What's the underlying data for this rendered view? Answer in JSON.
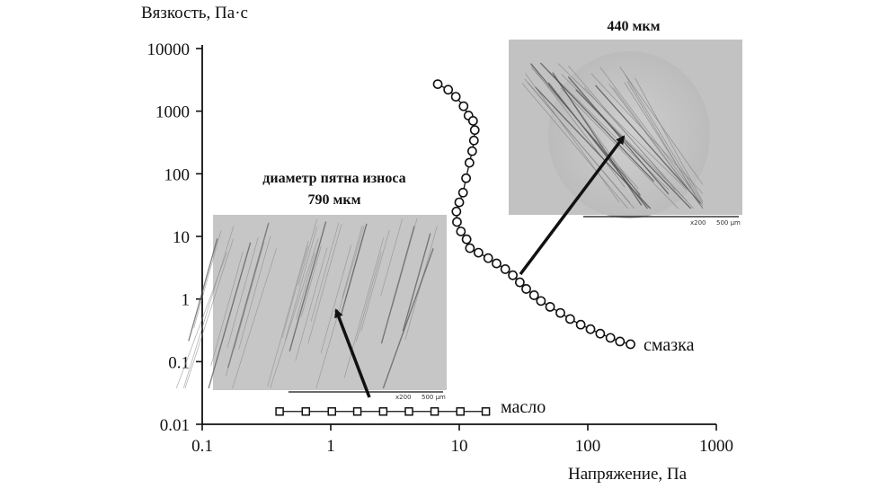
{
  "chart_data": {
    "type": "scatter",
    "xlabel": "Напряжение, Па",
    "ylabel": "Вязкость, Па·с",
    "x_scale": "log",
    "y_scale": "log",
    "xlim": [
      0.1,
      1000
    ],
    "ylim": [
      0.01,
      10000
    ],
    "x_ticks": [
      "0.1",
      "1",
      "10",
      "100",
      "1000"
    ],
    "y_ticks": [
      "0.01",
      "0.1",
      "1",
      "10",
      "100",
      "1000",
      "10000"
    ],
    "grid": false,
    "series": [
      {
        "name": "смазка",
        "marker": "circle",
        "points": [
          [
            6.8,
            2700
          ],
          [
            8.2,
            2200
          ],
          [
            9.4,
            1700
          ],
          [
            10.8,
            1200
          ],
          [
            11.8,
            850
          ],
          [
            12.8,
            700
          ],
          [
            13.2,
            500
          ],
          [
            13.0,
            340
          ],
          [
            12.6,
            230
          ],
          [
            12.0,
            150
          ],
          [
            11.3,
            85
          ],
          [
            10.7,
            50
          ],
          [
            10.0,
            35
          ],
          [
            9.5,
            25
          ],
          [
            9.6,
            17
          ],
          [
            10.3,
            12
          ],
          [
            11.4,
            9
          ],
          [
            12.1,
            6.5
          ],
          [
            14.1,
            5.5
          ],
          [
            16.8,
            4.5
          ],
          [
            19.5,
            3.7
          ],
          [
            22.8,
            3.0
          ],
          [
            26.1,
            2.4
          ],
          [
            29.6,
            1.85
          ],
          [
            33.2,
            1.45
          ],
          [
            38.2,
            1.15
          ],
          [
            43.2,
            0.93
          ],
          [
            50.9,
            0.75
          ],
          [
            61.2,
            0.6
          ],
          [
            72.9,
            0.48
          ],
          [
            88.1,
            0.39
          ],
          [
            105,
            0.33
          ],
          [
            125,
            0.28
          ],
          [
            150,
            0.24
          ],
          [
            178,
            0.21
          ],
          [
            215,
            0.19
          ]
        ]
      },
      {
        "name": "масло",
        "marker": "square",
        "points": [
          [
            0.4,
            0.016
          ],
          [
            0.64,
            0.016
          ],
          [
            1.02,
            0.016
          ],
          [
            1.61,
            0.016
          ],
          [
            2.56,
            0.016
          ],
          [
            4.06,
            0.016
          ],
          [
            6.43,
            0.016
          ],
          [
            10.2,
            0.016
          ],
          [
            16.1,
            0.016
          ]
        ]
      }
    ],
    "annotations": [
      {
        "caption_lines": [
          "диаметр пятна износа",
          "790 мкм"
        ],
        "arrow_target": [
          1.03,
          1.1
        ],
        "micrograph_scale": [
          "x200",
          "500 µm"
        ]
      },
      {
        "caption_lines": [
          "440 мкм"
        ],
        "arrow_target": [
          75,
          190
        ],
        "micrograph_scale": [
          "x200",
          "500 µm"
        ]
      }
    ]
  },
  "colors": {
    "axis": "#111111",
    "micrograph_bg": "#c9c9c9",
    "micrograph_bg_dark": "#bdbdbd",
    "scratch": "#6e6e6e"
  }
}
